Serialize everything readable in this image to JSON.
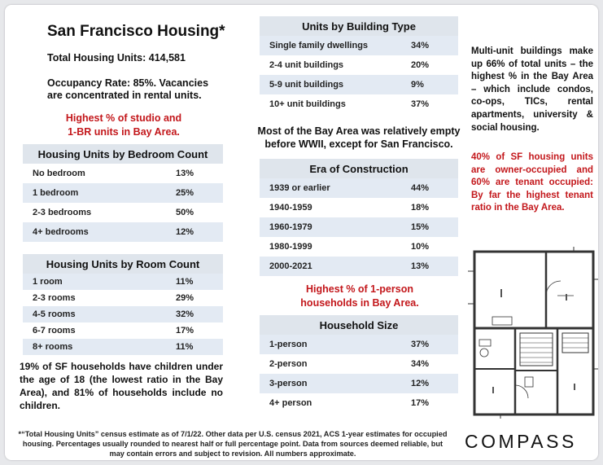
{
  "title": "San Francisco Housing*",
  "total_units": "Total Housing Units: 414,581",
  "occupancy_line1": "Occupancy Rate:  85%.  Vacancies",
  "occupancy_line2": "are concentrated in rental units.",
  "studio_note_line1": "Highest % of studio and",
  "studio_note_line2": "1-BR units in Bay Area.",
  "bedroom_table": {
    "title": "Housing Units by Bedroom Count",
    "rows": [
      {
        "label": "No bedroom",
        "value": "13%"
      },
      {
        "label": "1 bedroom",
        "value": "25%"
      },
      {
        "label": "2-3 bedrooms",
        "value": "50%"
      },
      {
        "label": "4+ bedrooms",
        "value": "12%"
      }
    ]
  },
  "room_table": {
    "title": "Housing Units by Room Count",
    "rows": [
      {
        "label": "1 room",
        "value": "11%"
      },
      {
        "label": "2-3 rooms",
        "value": "29%"
      },
      {
        "label": "4-5 rooms",
        "value": "32%"
      },
      {
        "label": "6-7 rooms",
        "value": "17%"
      },
      {
        "label": "8+ rooms",
        "value": "11%"
      }
    ]
  },
  "children_note": "19% of SF households have children under the age of 18 (the lowest ratio in the Bay Area), and 81% of households include no children.",
  "building_table": {
    "title": "Units by Building Type",
    "rows": [
      {
        "label": "Single family dwellings",
        "value": "34%"
      },
      {
        "label": "2-4 unit buildings",
        "value": "20%"
      },
      {
        "label": "5-9 unit buildings",
        "value": "9%"
      },
      {
        "label": "10+ unit buildings",
        "value": "37%"
      }
    ]
  },
  "wwii_note_line1": "Most of the Bay Area was relatively empty",
  "wwii_note_line2": "before WWII, except for San Francisco.",
  "era_table": {
    "title": "Era of Construction",
    "rows": [
      {
        "label": "1939 or earlier",
        "value": "44%"
      },
      {
        "label": "1940-1959",
        "value": "18%"
      },
      {
        "label": "1960-1979",
        "value": "15%"
      },
      {
        "label": "1980-1999",
        "value": "10%"
      },
      {
        "label": "2000-2021",
        "value": "13%"
      }
    ]
  },
  "one_person_note_line1": "Highest % of 1-person",
  "one_person_note_line2": "households in Bay Area.",
  "household_table": {
    "title": "Household Size",
    "rows": [
      {
        "label": "1-person",
        "value": "37%"
      },
      {
        "label": "2-person",
        "value": "34%"
      },
      {
        "label": "3-person",
        "value": "12%"
      },
      {
        "label": "4+ person",
        "value": "17%"
      }
    ]
  },
  "multiunit_note": "Multi-unit buildings make up 66% of total units – the highest % in the Bay Area – which include condos, co-ops, TICs, rental apartments, university & social housing.",
  "owner_note": "40% of SF housing units are owner-occupied and 60% are tenant occupied: By far the highest tenant ratio in the Bay Area.",
  "footnote": "*“Total Housing Units” census estimate as of 7/1/22. Other data per U.S. census 2021, ACS 1-year estimates for occupied housing. Percentages usually rounded to nearest half or full percentage point. Data from sources deemed reliable, but may contain errors and subject to revision. All numbers approximate.",
  "logo": "COMPASS",
  "colors": {
    "accent_red": "#c3171b",
    "table_header": "#dfe5ec",
    "table_stripe": "#e3eaf3"
  },
  "floorplan_image": "floor-plan-drawing"
}
